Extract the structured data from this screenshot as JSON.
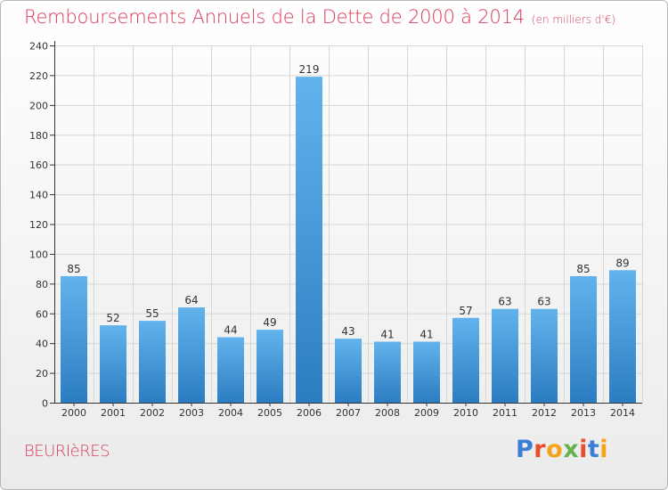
{
  "header": {
    "title": "Remboursements Annuels de la Dette de 2000 à 2014",
    "unit": "(en milliers d'€)"
  },
  "footer": {
    "commune": "BEURIèRES",
    "logo_text": "Proxiti"
  },
  "colors": {
    "title": "#d93a5a",
    "bar_top": "#62b3ec",
    "bar_bottom": "#2b7dc2",
    "logo_letters": [
      "#3a7fd4",
      "#e8502d",
      "#f2a51c",
      "#62b44c",
      "#e8502d",
      "#3a7fd4",
      "#f2a51c"
    ]
  },
  "chart_data": {
    "type": "bar",
    "title": "Remboursements Annuels de la Dette de 2000 à 2014",
    "subtitle": "(en milliers d'€)",
    "xlabel": "",
    "ylabel": "",
    "categories": [
      "2000",
      "2001",
      "2002",
      "2003",
      "2004",
      "2005",
      "2006",
      "2007",
      "2008",
      "2009",
      "2010",
      "2011",
      "2012",
      "2013",
      "2014"
    ],
    "values": [
      85,
      52,
      55,
      64,
      44,
      49,
      219,
      43,
      41,
      41,
      57,
      63,
      63,
      85,
      89
    ],
    "ylim": [
      0,
      240
    ],
    "yticks": [
      0,
      20,
      40,
      60,
      80,
      100,
      120,
      140,
      160,
      180,
      200,
      220,
      240
    ],
    "grid": true,
    "data_labels": true
  }
}
